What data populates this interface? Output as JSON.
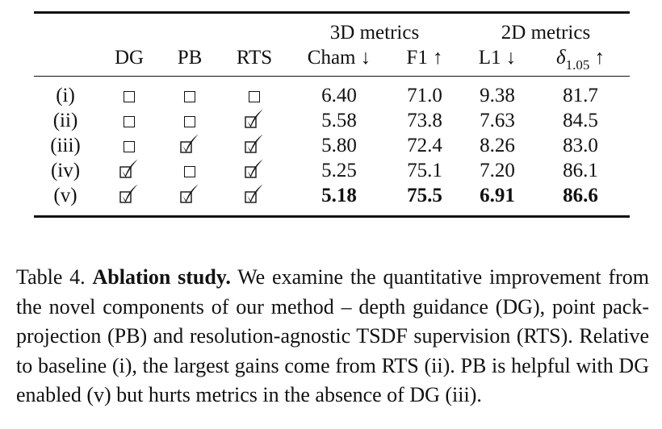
{
  "table": {
    "group_headers": {
      "metrics3d": "3D metrics",
      "metrics2d": "2D metrics"
    },
    "columns": {
      "dg": "DG",
      "pb": "PB",
      "rts": "RTS",
      "cham": "Cham ↓",
      "f1": "F1 ↑",
      "l1": "L1 ↓",
      "delta_base": "δ",
      "delta_sub": "1.05",
      "delta_arrow": " ↑"
    },
    "rows": [
      {
        "label": "(i)",
        "dg": false,
        "pb": false,
        "rts": false,
        "cham": "6.40",
        "f1": "71.0",
        "l1": "9.38",
        "delta": "81.7"
      },
      {
        "label": "(ii)",
        "dg": false,
        "pb": false,
        "rts": true,
        "cham": "5.58",
        "f1": "73.8",
        "l1": "7.63",
        "delta": "84.5"
      },
      {
        "label": "(iii)",
        "dg": false,
        "pb": true,
        "rts": true,
        "cham": "5.80",
        "f1": "72.4",
        "l1": "8.26",
        "delta": "83.0"
      },
      {
        "label": "(iv)",
        "dg": true,
        "pb": false,
        "rts": true,
        "cham": "5.25",
        "f1": "75.1",
        "l1": "7.20",
        "delta": "86.1"
      },
      {
        "label": "(v)",
        "dg": true,
        "pb": true,
        "rts": true,
        "cham": "5.18",
        "f1": "75.5",
        "l1": "6.91",
        "delta": "86.6"
      }
    ]
  },
  "caption": {
    "label": "Table 4.",
    "title": "Ablation study.",
    "text": "We examine the quantitative improvement from the novel components of our method – depth guidance (DG), point pack-projection (PB) and resolution-agnostic TSDF supervision (RTS). Relative to baseline (i), the largest gains come from RTS (ii). PB is helpful with DG enabled (v) but hurts metrics in the absence of DG (iii)."
  }
}
